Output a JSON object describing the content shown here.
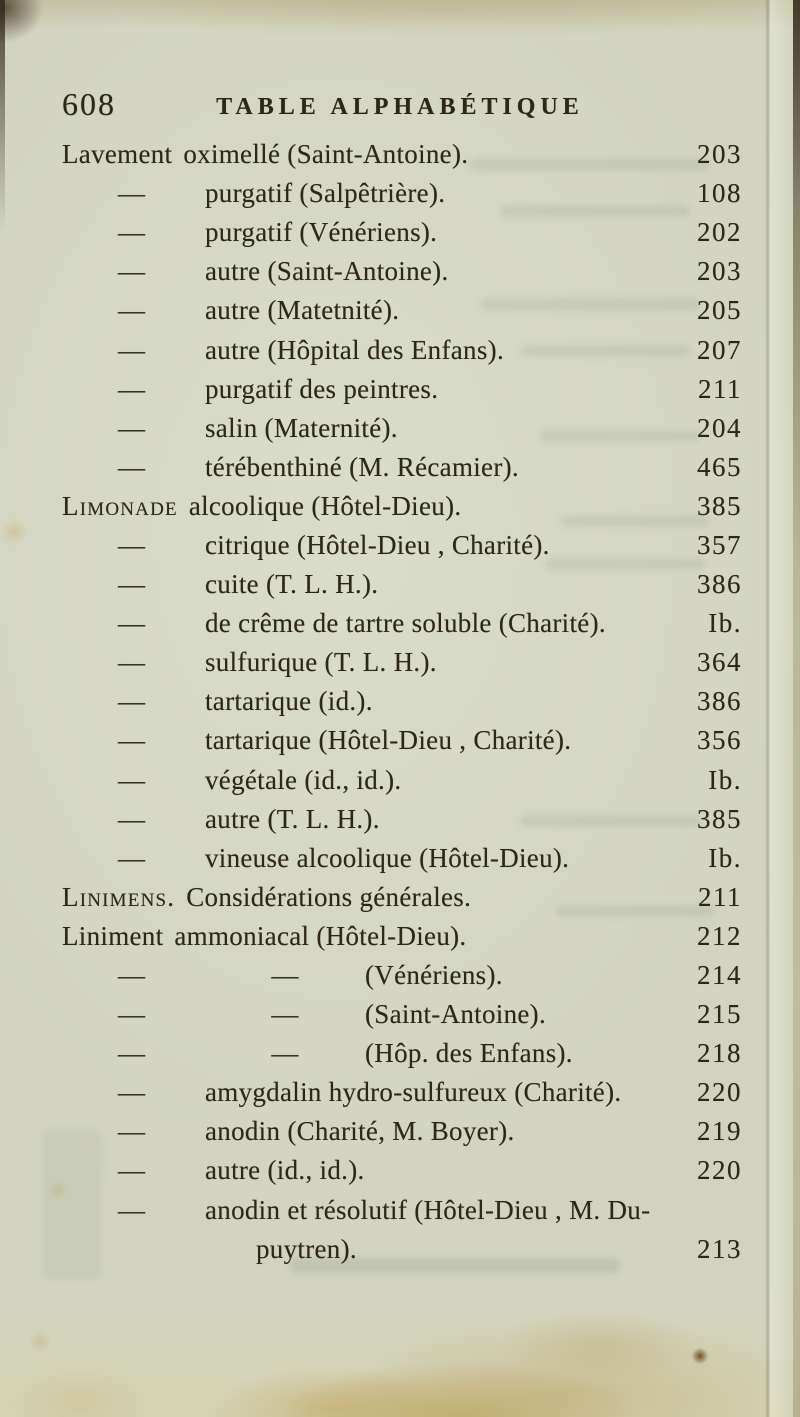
{
  "page": {
    "number": "608",
    "header_title": "TABLE ALPHABÉTIQUE"
  },
  "index": {
    "dash_glyph": "—",
    "rows": [
      {
        "type": "main",
        "smallcaps": false,
        "lead": "Lavement",
        "text": "oximellé (Saint-Antoine).",
        "page": "203"
      },
      {
        "type": "sub",
        "text": "purgatif (Salpêtrière).",
        "page": "108"
      },
      {
        "type": "sub",
        "text": "purgatif (Vénériens).",
        "page": "202"
      },
      {
        "type": "sub",
        "text": "autre (Saint-Antoine).",
        "page": "203"
      },
      {
        "type": "sub",
        "text": "autre (Matetnité).",
        "page": "205"
      },
      {
        "type": "sub",
        "text": "autre (Hôpital des Enfans).",
        "page": "207"
      },
      {
        "type": "sub",
        "text": "purgatif des peintres.",
        "page": "211"
      },
      {
        "type": "sub",
        "text": "salin (Maternité).",
        "page": "204"
      },
      {
        "type": "sub",
        "text": "térébenthiné (M. Récamier).",
        "page": "465"
      },
      {
        "type": "main",
        "smallcaps": true,
        "lead": "Limonade",
        "text": "alcoolique (Hôtel-Dieu).",
        "page": "385"
      },
      {
        "type": "sub",
        "text": "citrique (Hôtel-Dieu , Charité).",
        "page": "357"
      },
      {
        "type": "sub",
        "text": "cuite (T. L. H.).",
        "page": "386"
      },
      {
        "type": "sub",
        "text": "de crême de tartre soluble (Charité).",
        "page": "Ib."
      },
      {
        "type": "sub",
        "text": "sulfurique (T. L. H.).",
        "page": "364"
      },
      {
        "type": "sub",
        "text": "tartarique (id.).",
        "page": "386"
      },
      {
        "type": "sub",
        "text": "tartarique (Hôtel-Dieu , Charité).",
        "page": "356"
      },
      {
        "type": "sub",
        "text": "végétale (id., id.).",
        "page": "Ib."
      },
      {
        "type": "sub",
        "text": "autre (T. L. H.).",
        "page": "385"
      },
      {
        "type": "sub",
        "text": "vineuse alcoolique (Hôtel-Dieu).",
        "page": "Ib."
      },
      {
        "type": "main",
        "smallcaps": true,
        "lead": "Linimens.",
        "text": "Considérations générales.",
        "page": "211"
      },
      {
        "type": "main",
        "smallcaps": false,
        "lead": "Liniment",
        "text": "ammoniacal (Hôtel-Dieu).",
        "page": "212"
      },
      {
        "type": "sub2",
        "text": "(Vénériens).",
        "page": "214"
      },
      {
        "type": "sub2",
        "text": "(Saint-Antoine).",
        "page": "215"
      },
      {
        "type": "sub2",
        "text": "(Hôp. des Enfans).",
        "page": "218"
      },
      {
        "type": "sub",
        "text": "amygdalin hydro-sulfureux (Charité).",
        "page": "220"
      },
      {
        "type": "sub",
        "text": "anodin (Charité, M. Boyer).",
        "page": "219"
      },
      {
        "type": "sub",
        "text": "autre (id., id.).",
        "page": "220"
      },
      {
        "type": "sub",
        "text": "anodin et résolutif (Hôtel-Dieu , M. Du-",
        "page": ""
      },
      {
        "type": "cont",
        "text": "puytren).",
        "page": "213"
      }
    ]
  }
}
